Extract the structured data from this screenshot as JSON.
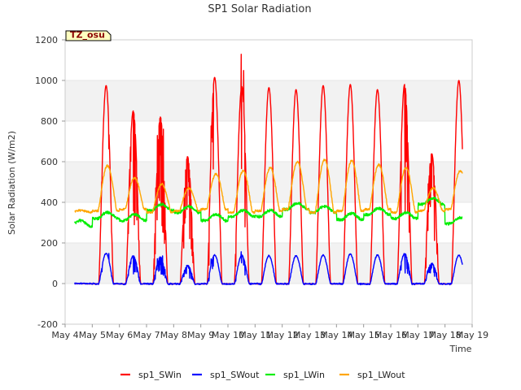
{
  "chart_data": {
    "type": "line",
    "title": "SP1 Solar Radiation",
    "xlabel": "Time",
    "ylabel": "Solar Radiation (W/m2)",
    "ylim": [
      -200,
      1200
    ],
    "yticks": [
      -200,
      0,
      200,
      400,
      600,
      800,
      1000,
      1200
    ],
    "xlim": [
      4,
      19
    ],
    "xticks": [
      4,
      5,
      6,
      7,
      8,
      9,
      10,
      11,
      12,
      13,
      14,
      15,
      16,
      17,
      18,
      19
    ],
    "xtick_labels": [
      "May 4",
      "May 5",
      "May 6",
      "May 7",
      "May 8",
      "May 9",
      "May 10",
      "May 11",
      "May 12",
      "May 13",
      "May 14",
      "May 15",
      "May 16",
      "May 17",
      "May 18",
      "May 19"
    ],
    "grid": "horizontal bands",
    "legend_position": "bottom-center",
    "annotation": "TZ_osu",
    "days": [
      4,
      5,
      6,
      7,
      8,
      9,
      10,
      11,
      12,
      13,
      14,
      15,
      16,
      17,
      18
    ],
    "series": [
      {
        "name": "sp1_SWin",
        "color": "#ff0000",
        "values": [
          0,
          975,
          850,
          820,
          625,
          1015,
          970,
          965,
          955,
          975,
          980,
          955,
          980,
          640,
          1000
        ]
      },
      {
        "name": "sp1_SWout",
        "color": "#0000ff",
        "values": [
          0,
          148,
          135,
          130,
          90,
          140,
          138,
          137,
          137,
          140,
          145,
          140,
          148,
          100,
          140
        ]
      },
      {
        "name": "sp1_LWin",
        "color": "#00ee00",
        "values": [
          310,
          350,
          340,
          390,
          380,
          340,
          360,
          360,
          395,
          380,
          345,
          370,
          350,
          420,
          325
        ]
      },
      {
        "name": "sp1_LWout",
        "color": "#ffa500",
        "values": [
          360,
          580,
          520,
          490,
          470,
          540,
          555,
          570,
          600,
          610,
          605,
          585,
          570,
          470,
          555
        ]
      }
    ]
  }
}
